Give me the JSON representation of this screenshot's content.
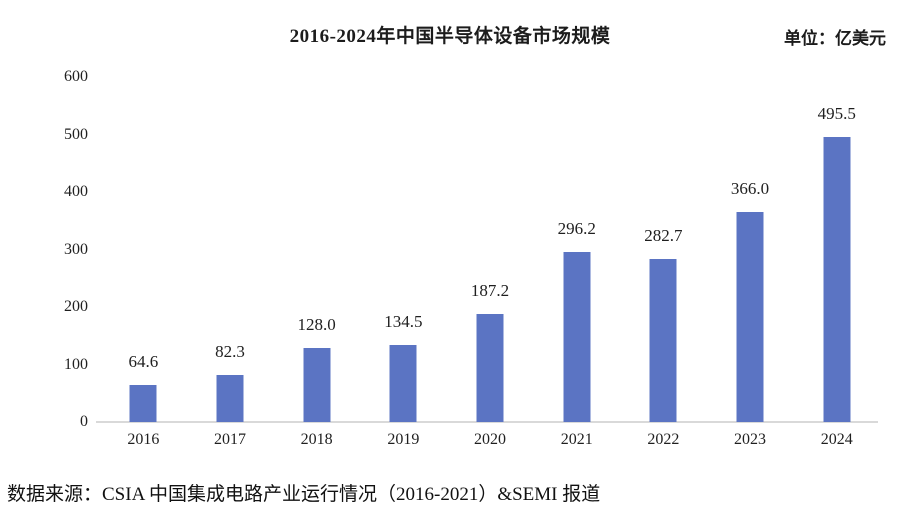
{
  "header": {
    "title": "2016-2024年中国半导体设备市场规模",
    "unit_label": "单位：亿美元"
  },
  "chart_data": {
    "type": "bar",
    "title": "2016-2024年中国半导体设备市场规模",
    "unit": "亿美元",
    "categories": [
      "2016",
      "2017",
      "2018",
      "2019",
      "2020",
      "2021",
      "2022",
      "2023",
      "2024"
    ],
    "values": [
      64.6,
      82.3,
      128.0,
      134.5,
      187.2,
      296.2,
      282.7,
      366.0,
      495.5
    ],
    "value_labels": [
      "64.6",
      "82.3",
      "128.0",
      "134.5",
      "187.2",
      "296.2",
      "282.7",
      "366.0",
      "495.5"
    ],
    "y_ticks": [
      600,
      500,
      400,
      300,
      200,
      100,
      0
    ],
    "ylim": [
      0,
      600
    ],
    "grid": false,
    "legend": "none",
    "bar_color": "#5b74c3",
    "axis_line_color": "#d9d9d9"
  },
  "footer": {
    "source": "数据来源：CSIA 中国集成电路产业运行情况（2016-2021）&SEMI 报道"
  }
}
